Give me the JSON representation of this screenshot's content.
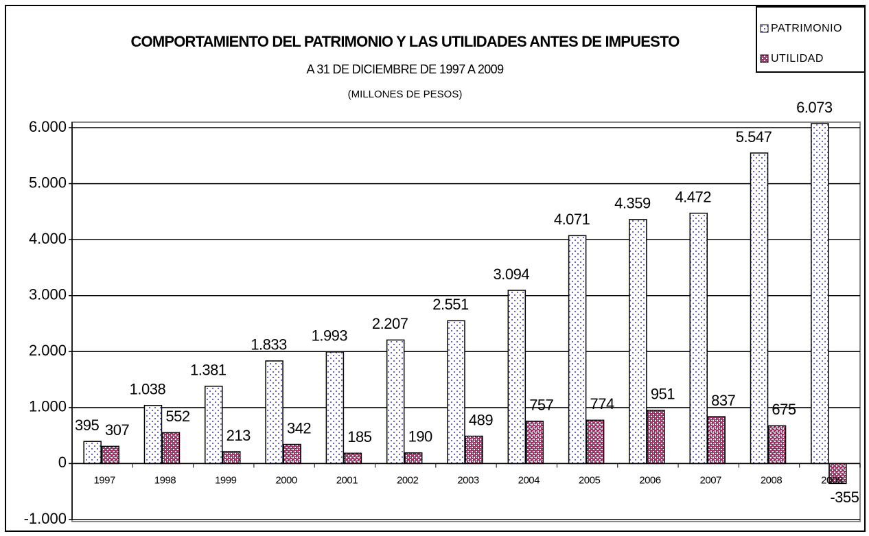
{
  "chart_data": {
    "type": "bar",
    "title": "COMPORTAMIENTO DEL PATRIMONIO Y LAS UTILIDADES ANTES DE IMPUESTO",
    "subtitle": "A 31 DE DICIEMBRE DE 1997 A  2009",
    "note": "(MILLONES DE PESOS)",
    "categories": [
      "1997",
      "1998",
      "1999",
      "2000",
      "2001",
      "2002",
      "2003",
      "2004",
      "2005",
      "2006",
      "2007",
      "2008",
      "2009"
    ],
    "series": [
      {
        "name": "PATRIMONIO",
        "color": "#6666cc",
        "values": [
          395,
          1038,
          1381,
          1833,
          1993,
          2207,
          2551,
          3094,
          4071,
          4359,
          4472,
          5547,
          6073
        ],
        "value_labels": [
          "395",
          "1.038",
          "1.381",
          "1.833",
          "1.993",
          "2.207",
          "2.551",
          "3.094",
          "4.071",
          "4.359",
          "4.472",
          "5.547",
          "6.073"
        ]
      },
      {
        "name": "UTILIDAD",
        "color": "#993366",
        "values": [
          307,
          552,
          213,
          342,
          185,
          190,
          489,
          757,
          774,
          951,
          837,
          675,
          -355
        ],
        "value_labels": [
          "307",
          "552",
          "213",
          "342",
          "185",
          "190",
          "489",
          "757",
          "774",
          "951",
          "837",
          "675",
          "-355"
        ]
      }
    ],
    "ylim": [
      -1000,
      6000
    ],
    "yticks": [
      {
        "value": -1000,
        "label": "-1.000"
      },
      0,
      {
        "value": 1000,
        "label": "1.000"
      },
      {
        "value": 2000,
        "label": "2.000"
      },
      {
        "value": 3000,
        "label": "3.000"
      },
      {
        "value": 4000,
        "label": "4.000"
      },
      {
        "value": 5000,
        "label": "5.000"
      },
      {
        "value": 6000,
        "label": "6.000"
      }
    ],
    "grid": true,
    "legend": "top-right"
  }
}
